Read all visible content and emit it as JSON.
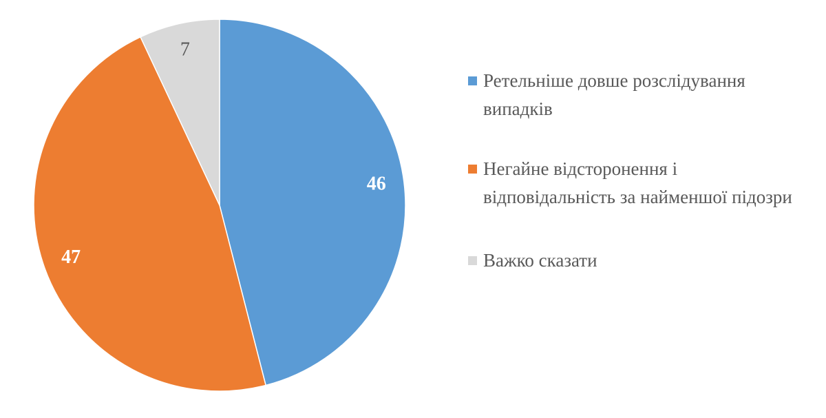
{
  "chart_data": {
    "type": "pie",
    "categories": [
      "Ретельніше довше розслідування випадків",
      "Негайне відсторонення і відповідальність за найменшої підозри",
      "Важко сказати"
    ],
    "values": [
      46,
      47,
      7
    ],
    "colors": [
      "#5b9bd5",
      "#ed7d31",
      "#d9d9d9"
    ],
    "label_colors": [
      "#ffffff",
      "#ffffff",
      "#595959"
    ],
    "legend": "right"
  }
}
